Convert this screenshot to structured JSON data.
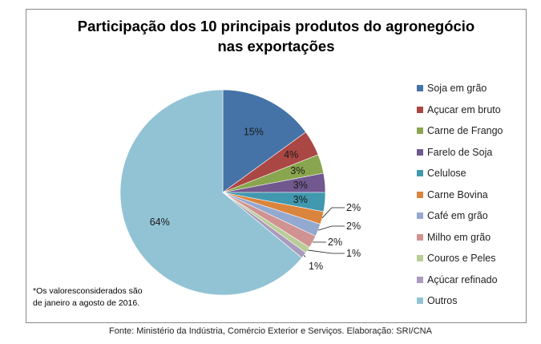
{
  "chart_data": {
    "type": "pie",
    "title": "Participação dos 10 principais produtos do agronegócio nas exportações",
    "title_lines": [
      "Participação dos 10 principais produtos do agronegócio",
      "nas exportações"
    ],
    "categories": [
      "Soja em grão",
      "Açucar em bruto",
      "Carne de Frango",
      "Farelo de Soja",
      "Celulose",
      "Carne Bovina",
      "Café em grão",
      "Milho em grão",
      "Couros e Peles",
      "Açúcar refinado",
      "Outros"
    ],
    "values": [
      15,
      4,
      3,
      3,
      3,
      2,
      2,
      2,
      1,
      1,
      64
    ],
    "data_labels": [
      "15%",
      "4%",
      "3%",
      "3%",
      "3%",
      "2%",
      "2%",
      "2%",
      "1%",
      "1%",
      "64%"
    ],
    "colors": [
      "#4573a7",
      "#aa4643",
      "#89a54e",
      "#71588f",
      "#4198af",
      "#db843d",
      "#93a9cf",
      "#d19392",
      "#b9cd96",
      "#a99bbd",
      "#92c3d4"
    ],
    "legend_position": "right",
    "start_angle_deg": 0,
    "direction": "clockwise"
  },
  "note": [
    "*Os valoresconsiderados são",
    "de janeiro a agosto de 2016."
  ],
  "source": "Fonte: Ministério da Indústria, Comércio Exterior e Serviços. Elaboração: SRI/CNA"
}
